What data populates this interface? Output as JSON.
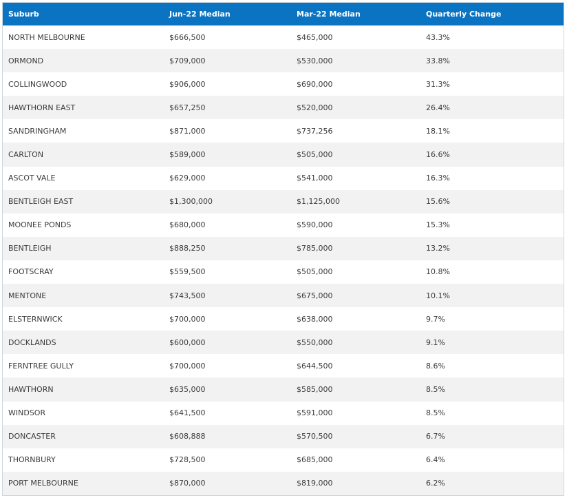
{
  "table": {
    "headers": [
      "Suburb",
      "Jun-22 Median",
      "Mar-22 Median",
      "Quarterly Change"
    ],
    "rows": [
      [
        "NORTH MELBOURNE",
        "$666,500",
        "$465,000",
        "43.3%"
      ],
      [
        "ORMOND",
        "$709,000",
        "$530,000",
        "33.8%"
      ],
      [
        "COLLINGWOOD",
        "$906,000",
        "$690,000",
        "31.3%"
      ],
      [
        "HAWTHORN EAST",
        "$657,250",
        "$520,000",
        "26.4%"
      ],
      [
        "SANDRINGHAM",
        "$871,000",
        "$737,256",
        "18.1%"
      ],
      [
        "CARLTON",
        "$589,000",
        "$505,000",
        "16.6%"
      ],
      [
        "ASCOT VALE",
        "$629,000",
        "$541,000",
        "16.3%"
      ],
      [
        "BENTLEIGH EAST",
        "$1,300,000",
        "$1,125,000",
        "15.6%"
      ],
      [
        "MOONEE PONDS",
        "$680,000",
        "$590,000",
        "15.3%"
      ],
      [
        "BENTLEIGH",
        "$888,250",
        "$785,000",
        "13.2%"
      ],
      [
        "FOOTSCRAY",
        "$559,500",
        "$505,000",
        "10.8%"
      ],
      [
        "MENTONE",
        "$743,500",
        "$675,000",
        "10.1%"
      ],
      [
        "ELSTERNWICK",
        "$700,000",
        "$638,000",
        "9.7%"
      ],
      [
        "DOCKLANDS",
        "$600,000",
        "$550,000",
        "9.1%"
      ],
      [
        "FERNTREE GULLY",
        "$700,000",
        "$644,500",
        "8.6%"
      ],
      [
        "HAWTHORN",
        "$635,000",
        "$585,000",
        "8.5%"
      ],
      [
        "WINDSOR",
        "$641,500",
        "$591,000",
        "8.5%"
      ],
      [
        "DONCASTER",
        "$608,888",
        "$570,500",
        "6.7%"
      ],
      [
        "THORNBURY",
        "$728,500",
        "$685,000",
        "6.4%"
      ],
      [
        "PORT MELBOURNE",
        "$870,000",
        "$819,000",
        "6.2%"
      ]
    ]
  },
  "colors": {
    "header_bg": "#0a74c3",
    "header_text": "#ffffff",
    "row_alt_bg": "#f2f2f2",
    "row_bg": "#ffffff",
    "cell_text": "#3a3a3a"
  }
}
